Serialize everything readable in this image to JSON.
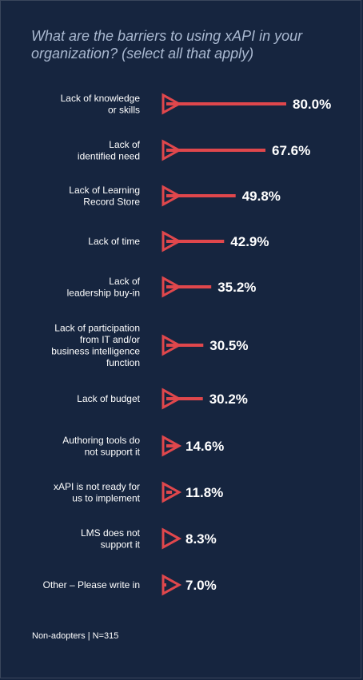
{
  "title": "What are the barriers to using xAPI in your organization? (select all that apply)",
  "footnote": "Non-adopters  |  N=315",
  "colors": {
    "background": "#16253f",
    "accent": "#e0474c",
    "title": "#a9b8d0",
    "text": "#ffffff"
  },
  "chart_data": {
    "type": "bar",
    "orientation": "horizontal",
    "title": "What are the barriers to using xAPI in your organization? (select all that apply)",
    "unit": "%",
    "categories": [
      [
        "Lack of knowledge",
        "or skills"
      ],
      [
        "Lack of",
        "identified need"
      ],
      [
        "Lack of Learning",
        "Record Store"
      ],
      [
        "Lack of time"
      ],
      [
        "Lack of",
        "leadership buy-in"
      ],
      [
        "Lack of participation",
        "from IT and/or",
        "business intelligence",
        "function"
      ],
      [
        "Lack of budget"
      ],
      [
        "Authoring tools do",
        "not support it"
      ],
      [
        "xAPI is not ready for",
        "us to implement"
      ],
      [
        "LMS does not",
        "support it"
      ],
      [
        "Other – Please write in"
      ]
    ],
    "values": [
      80.0,
      67.6,
      49.8,
      42.9,
      35.2,
      30.5,
      30.2,
      14.6,
      11.8,
      8.3,
      7.0
    ],
    "value_labels": [
      "80.0%",
      "67.6%",
      "49.8%",
      "42.9%",
      "35.2%",
      "30.5%",
      "30.2%",
      "14.6%",
      "11.8%",
      "8.3%",
      "7.0%"
    ],
    "xlim": [
      0,
      100
    ],
    "grid": false,
    "legend": "none"
  }
}
